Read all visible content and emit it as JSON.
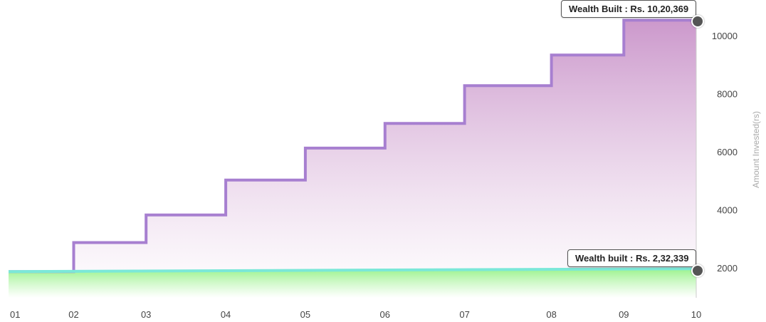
{
  "chart_data": {
    "type": "area",
    "x_ticks": [
      "01",
      "02",
      "03",
      "04",
      "05",
      "06",
      "07",
      "08",
      "09",
      "10"
    ],
    "y_ticks": [
      2000,
      4000,
      6000,
      8000,
      10000
    ],
    "ylabel": "Amount Invested(rs)",
    "xlabel": "",
    "ylim": [
      1000,
      11000
    ],
    "series": [
      {
        "step": "post",
        "color": "#a77fd0",
        "fill_top": "#c993c9",
        "x": [
          0.0,
          0.9,
          1.9,
          3.0,
          4.1,
          5.2,
          6.3,
          7.5,
          8.5,
          9.5
        ],
        "values": [
          1900,
          2900,
          3850,
          5050,
          6150,
          7000,
          8300,
          9350,
          10550,
          10550
        ]
      },
      {
        "color": "#7be8d8",
        "fill_top": "#a8f0a0",
        "x": [
          0.0,
          9.5
        ],
        "values": [
          1900,
          2000
        ]
      }
    ],
    "annotations": [
      {
        "text": "Wealth Built : Rs. 10,20,369",
        "x": 9.5,
        "y": 10550
      },
      {
        "text": "Wealth built : Rs. 2,32,339",
        "x": 9.5,
        "y": 1975
      }
    ]
  }
}
